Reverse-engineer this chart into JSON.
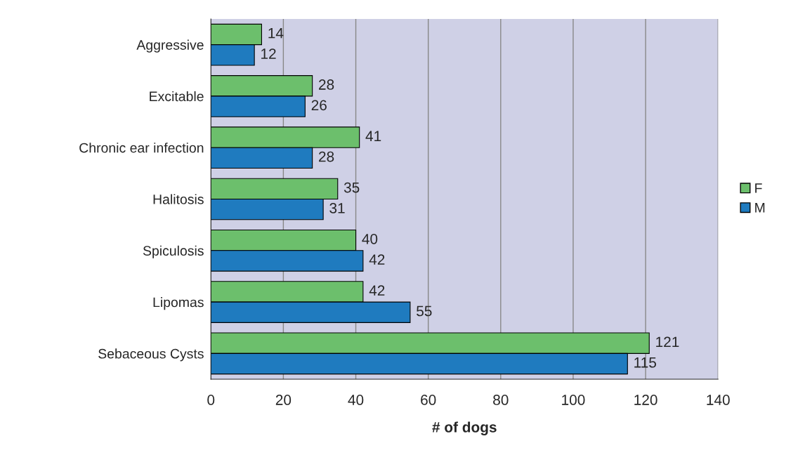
{
  "chart_data": {
    "type": "bar",
    "orientation": "horizontal",
    "xlabel": "# of dogs",
    "categories": [
      "Aggressive",
      "Excitable",
      "Chronic ear infection",
      "Halitosis",
      "Spiculosis",
      "Lipomas",
      "Sebaceous Cysts"
    ],
    "series": [
      {
        "name": "F",
        "color": "#6cbf6c",
        "values": [
          14,
          28,
          41,
          35,
          40,
          42,
          121
        ]
      },
      {
        "name": "M",
        "color": "#1f7bbf",
        "values": [
          12,
          26,
          28,
          31,
          42,
          55,
          115
        ]
      }
    ],
    "xlim": [
      0,
      140
    ],
    "xticks": [
      0,
      20,
      40,
      60,
      80,
      100,
      120,
      140
    ],
    "grid": "x",
    "legend": "right",
    "data_labels": true
  }
}
